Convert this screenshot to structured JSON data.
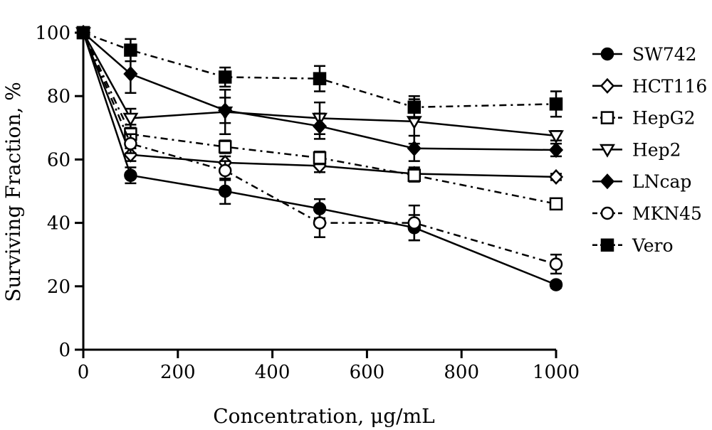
{
  "chart_data": {
    "type": "line",
    "title": "",
    "xlabel": "Concentration, μg/mL",
    "ylabel": "Surviving Fraction, %",
    "xlim": [
      0,
      1000
    ],
    "ylim": [
      0,
      100
    ],
    "xticks": [
      0,
      200,
      400,
      600,
      800,
      1000
    ],
    "yticks": [
      0,
      20,
      40,
      60,
      80,
      100
    ],
    "xtick_labels": [
      "0",
      "200",
      "400",
      "600",
      "800",
      "1000"
    ],
    "ytick_labels": [
      "0",
      "20",
      "40",
      "60",
      "80",
      "100"
    ],
    "x": [
      0,
      100,
      300,
      500,
      700,
      1000
    ],
    "grid": false,
    "legend_position": "right",
    "series": [
      {
        "name": "SW742",
        "marker": "circle-filled",
        "dash": "solid",
        "values": [
          100,
          55,
          50,
          44.5,
          38.5,
          20.5
        ],
        "errors": [
          0,
          2.5,
          4,
          3,
          4,
          1
        ]
      },
      {
        "name": "HCT116",
        "marker": "diamond-open",
        "dash": "solid",
        "values": [
          100,
          61.5,
          59,
          58,
          55.5,
          54.5
        ],
        "errors": [
          0,
          2,
          2,
          2,
          2,
          1
        ]
      },
      {
        "name": "HepG2",
        "marker": "square-open",
        "dash": "dashdot",
        "values": [
          100,
          68,
          64,
          60.5,
          55,
          46
        ],
        "errors": [
          0,
          3,
          2,
          2,
          2,
          1.5
        ]
      },
      {
        "name": "Hep2",
        "marker": "triangle-down-open",
        "dash": "solid",
        "values": [
          100,
          73,
          75,
          73,
          72,
          67.5
        ],
        "errors": [
          0,
          3,
          7,
          5,
          7,
          1.5
        ]
      },
      {
        "name": "LNcap",
        "marker": "diamond-filled",
        "dash": "solid",
        "values": [
          100,
          87,
          75.5,
          70.5,
          63.5,
          63
        ],
        "errors": [
          0,
          6,
          4,
          4,
          4,
          2
        ]
      },
      {
        "name": "MKN45",
        "marker": "circle-open",
        "dash": "dashdot",
        "values": [
          100,
          65,
          56.5,
          40,
          40,
          27
        ],
        "errors": [
          0,
          3,
          3,
          4.5,
          5.5,
          3
        ]
      },
      {
        "name": "Vero",
        "marker": "square-filled",
        "dash": "dashdot",
        "values": [
          100,
          94.5,
          86,
          85.5,
          76.5,
          77.5
        ],
        "errors": [
          0,
          3.5,
          3,
          4,
          3.5,
          4
        ]
      }
    ]
  }
}
